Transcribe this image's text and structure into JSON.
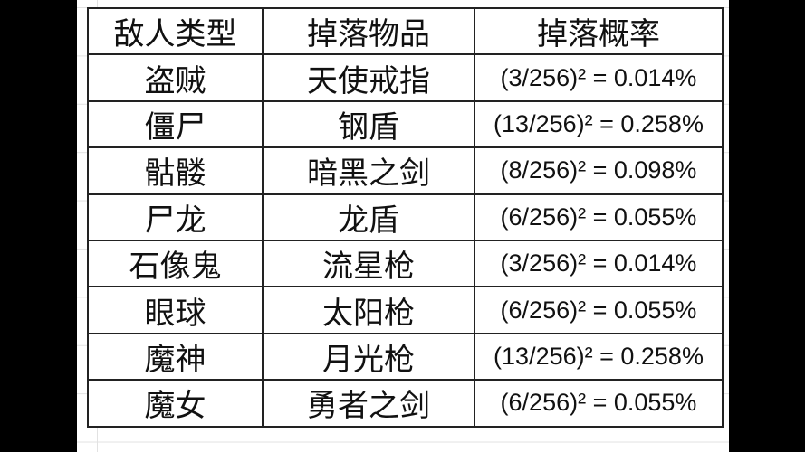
{
  "table": {
    "headers": [
      "敌人类型",
      "掉落物品",
      "掉落概率"
    ],
    "rows": [
      [
        "盗贼",
        "天使戒指",
        "(3/256)² = 0.014%"
      ],
      [
        "僵尸",
        "钢盾",
        "(13/256)² = 0.258%"
      ],
      [
        "骷髅",
        "暗黑之剑",
        "(8/256)² = 0.098%"
      ],
      [
        "尸龙",
        "龙盾",
        "(6/256)² = 0.055%"
      ],
      [
        "石像鬼",
        "流星枪",
        "(3/256)² = 0.014%"
      ],
      [
        "眼球",
        "太阳枪",
        "(6/256)² = 0.055%"
      ],
      [
        "魔神",
        "月光枪",
        "(13/256)² = 0.258%"
      ],
      [
        "魔女",
        "勇者之剑",
        "(6/256)² = 0.055%"
      ]
    ]
  }
}
